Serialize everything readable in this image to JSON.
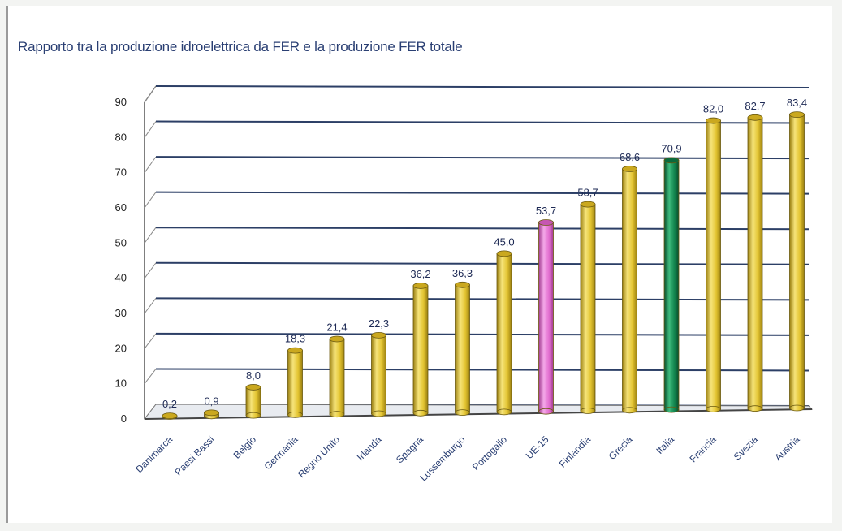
{
  "chart_data": {
    "type": "bar",
    "title": "Rapporto tra la produzione idroelettrica da FER e la produzione FER totale",
    "categories": [
      "Danimarca",
      "Paesi Bassi",
      "Belgio",
      "Germania",
      "Regno Unito",
      "Irlanda",
      "Spagna",
      "Lussemburgo",
      "Portogallo",
      "UE-15",
      "Finlandia",
      "Grecia",
      "Italia",
      "Francia",
      "Svezia",
      "Austria"
    ],
    "values": [
      0.2,
      0.9,
      8.0,
      18.3,
      21.4,
      22.3,
      36.2,
      36.3,
      45.0,
      53.7,
      58.7,
      68.6,
      70.9,
      82.0,
      82.7,
      83.4
    ],
    "data_labels": [
      "0,2",
      "0,9",
      "8,0",
      "18,3",
      "21,4",
      "22,3",
      "36,2",
      "36,3",
      "45,0",
      "53,7",
      "58,7",
      "68,6",
      "70,9",
      "82,0",
      "82,7",
      "83,4"
    ],
    "ylim": [
      0,
      90
    ],
    "yticks": [
      0,
      10,
      20,
      30,
      40,
      50,
      60,
      70,
      80,
      90
    ],
    "grid": true,
    "xlabel": "",
    "ylabel": "",
    "colors": {
      "default": "#e3c431",
      "highlight_ue15": "#e36fd0",
      "highlight_italia": "#12854e",
      "grid": "#2c3f66",
      "title": "#2a3f73"
    }
  }
}
